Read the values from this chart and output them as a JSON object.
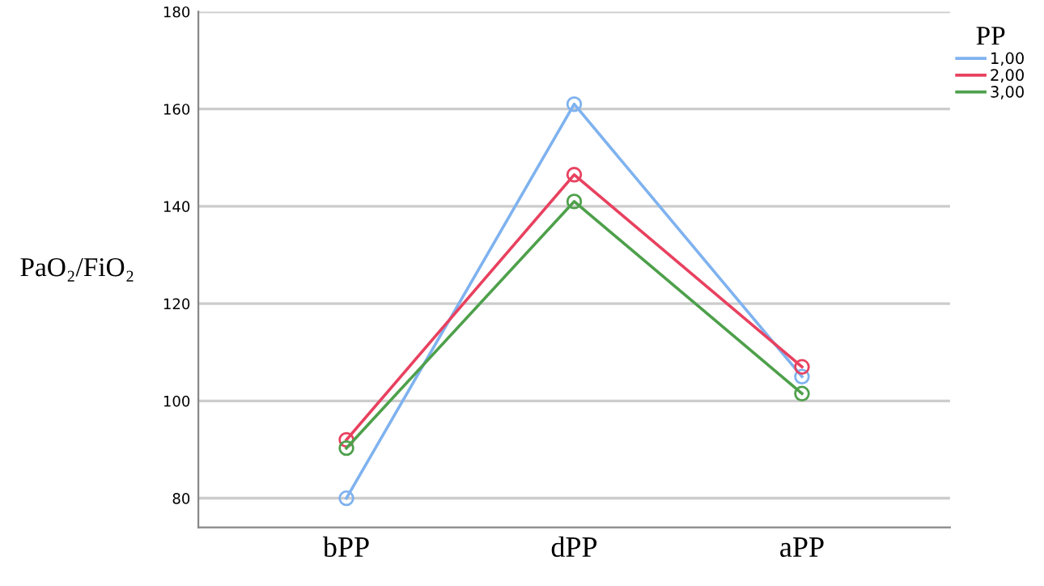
{
  "chart_data": {
    "type": "line",
    "ylabel": "PaO₂/FiO₂",
    "legend_title": "PP",
    "categories": [
      "bPP",
      "dPP",
      "aPP"
    ],
    "series": [
      {
        "name": "1,00",
        "color": "#7fb2ef",
        "values": [
          80,
          161,
          105
        ]
      },
      {
        "name": "2,00",
        "color": "#e8415f",
        "values": [
          92,
          146.5,
          107
        ]
      },
      {
        "name": "3,00",
        "color": "#4ea04b",
        "values": [
          90.3,
          141,
          101.5
        ]
      }
    ],
    "ylim": [
      74,
      180
    ],
    "yticks": [
      80,
      100,
      120,
      140,
      160,
      180
    ],
    "grid": "y",
    "legend": "top right",
    "marker": "circle",
    "line_style": "solid"
  }
}
